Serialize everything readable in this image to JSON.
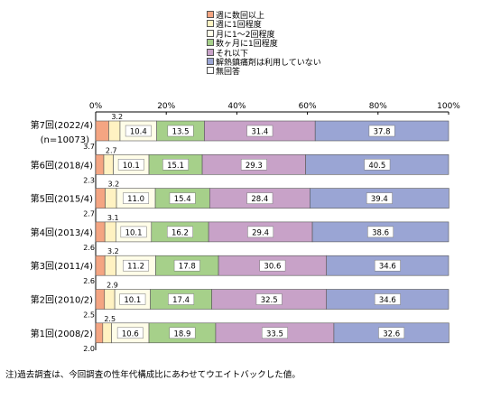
{
  "chart_data": {
    "type": "bar",
    "orientation": "horizontal",
    "stacked": true,
    "categories": [
      [
        "第7回(2022/4)",
        "(n=10073)"
      ],
      [
        "第6回(2018/4)"
      ],
      [
        "第5回(2015/4)"
      ],
      [
        "第4回(2013/4)"
      ],
      [
        "第3回(2011/4)"
      ],
      [
        "第2回(2010/2)"
      ],
      [
        "第1回(2008/2)"
      ]
    ],
    "series": [
      {
        "name": "週に数回以上",
        "color": "#f4a582",
        "values": [
          3.7,
          2.3,
          2.7,
          2.6,
          2.6,
          2.5,
          2.0
        ],
        "labels": [
          "3.7",
          "2.3",
          "2.7",
          "2.6",
          "2.6",
          "2.5",
          "2.0"
        ]
      },
      {
        "name": "週に1回程度",
        "color": "#fff2c2",
        "values": [
          3.2,
          2.7,
          3.2,
          3.1,
          3.2,
          2.9,
          2.5
        ],
        "labels": [
          "3.2",
          "2.7",
          "3.2",
          "3.1",
          "3.2",
          "2.9",
          "2.5"
        ]
      },
      {
        "name": "月に1～2回程度",
        "color": "#fffde8",
        "values": [
          10.4,
          10.1,
          11.0,
          10.1,
          11.2,
          10.1,
          10.6
        ],
        "labels": [
          "10.4",
          "10.1",
          "11.0",
          "10.1",
          "11.2",
          "10.1",
          "10.6"
        ]
      },
      {
        "name": "数ヶ月に1回程度",
        "color": "#a6d08a",
        "values": [
          13.5,
          15.1,
          15.4,
          16.2,
          17.8,
          17.4,
          18.9
        ],
        "labels": [
          "13.5",
          "15.1",
          "15.4",
          "16.2",
          "17.8",
          "17.4",
          "18.9"
        ]
      },
      {
        "name": "それ以下",
        "color": "#c8a2c8",
        "values": [
          31.4,
          29.3,
          28.4,
          29.4,
          30.6,
          32.5,
          33.5
        ],
        "labels": [
          "31.4",
          "29.3",
          "28.4",
          "29.4",
          "30.6",
          "32.5",
          "33.5"
        ]
      },
      {
        "name": "解熱鎮痛剤は利用していない",
        "color": "#9aa5d4",
        "values": [
          37.8,
          40.5,
          39.4,
          38.6,
          34.6,
          34.6,
          32.6
        ],
        "labels": [
          "37.8",
          "40.5",
          "39.4",
          "38.6",
          "34.6",
          "34.6",
          "32.6"
        ]
      },
      {
        "name": "無回答",
        "color": "#ffffff",
        "values": [
          0,
          0,
          0,
          0,
          0,
          0,
          0
        ],
        "labels": [
          "",
          "",
          "",
          "",
          "",
          "",
          ""
        ]
      }
    ],
    "xlim": [
      0,
      100
    ],
    "x_ticks": [
      "0%",
      "20%",
      "40%",
      "60%",
      "80%",
      "100%"
    ],
    "legend_position": "top",
    "grid": false
  },
  "note": "注)過去調査は、今回調査の性年代構成比にあわせてウエイトバックした値。"
}
